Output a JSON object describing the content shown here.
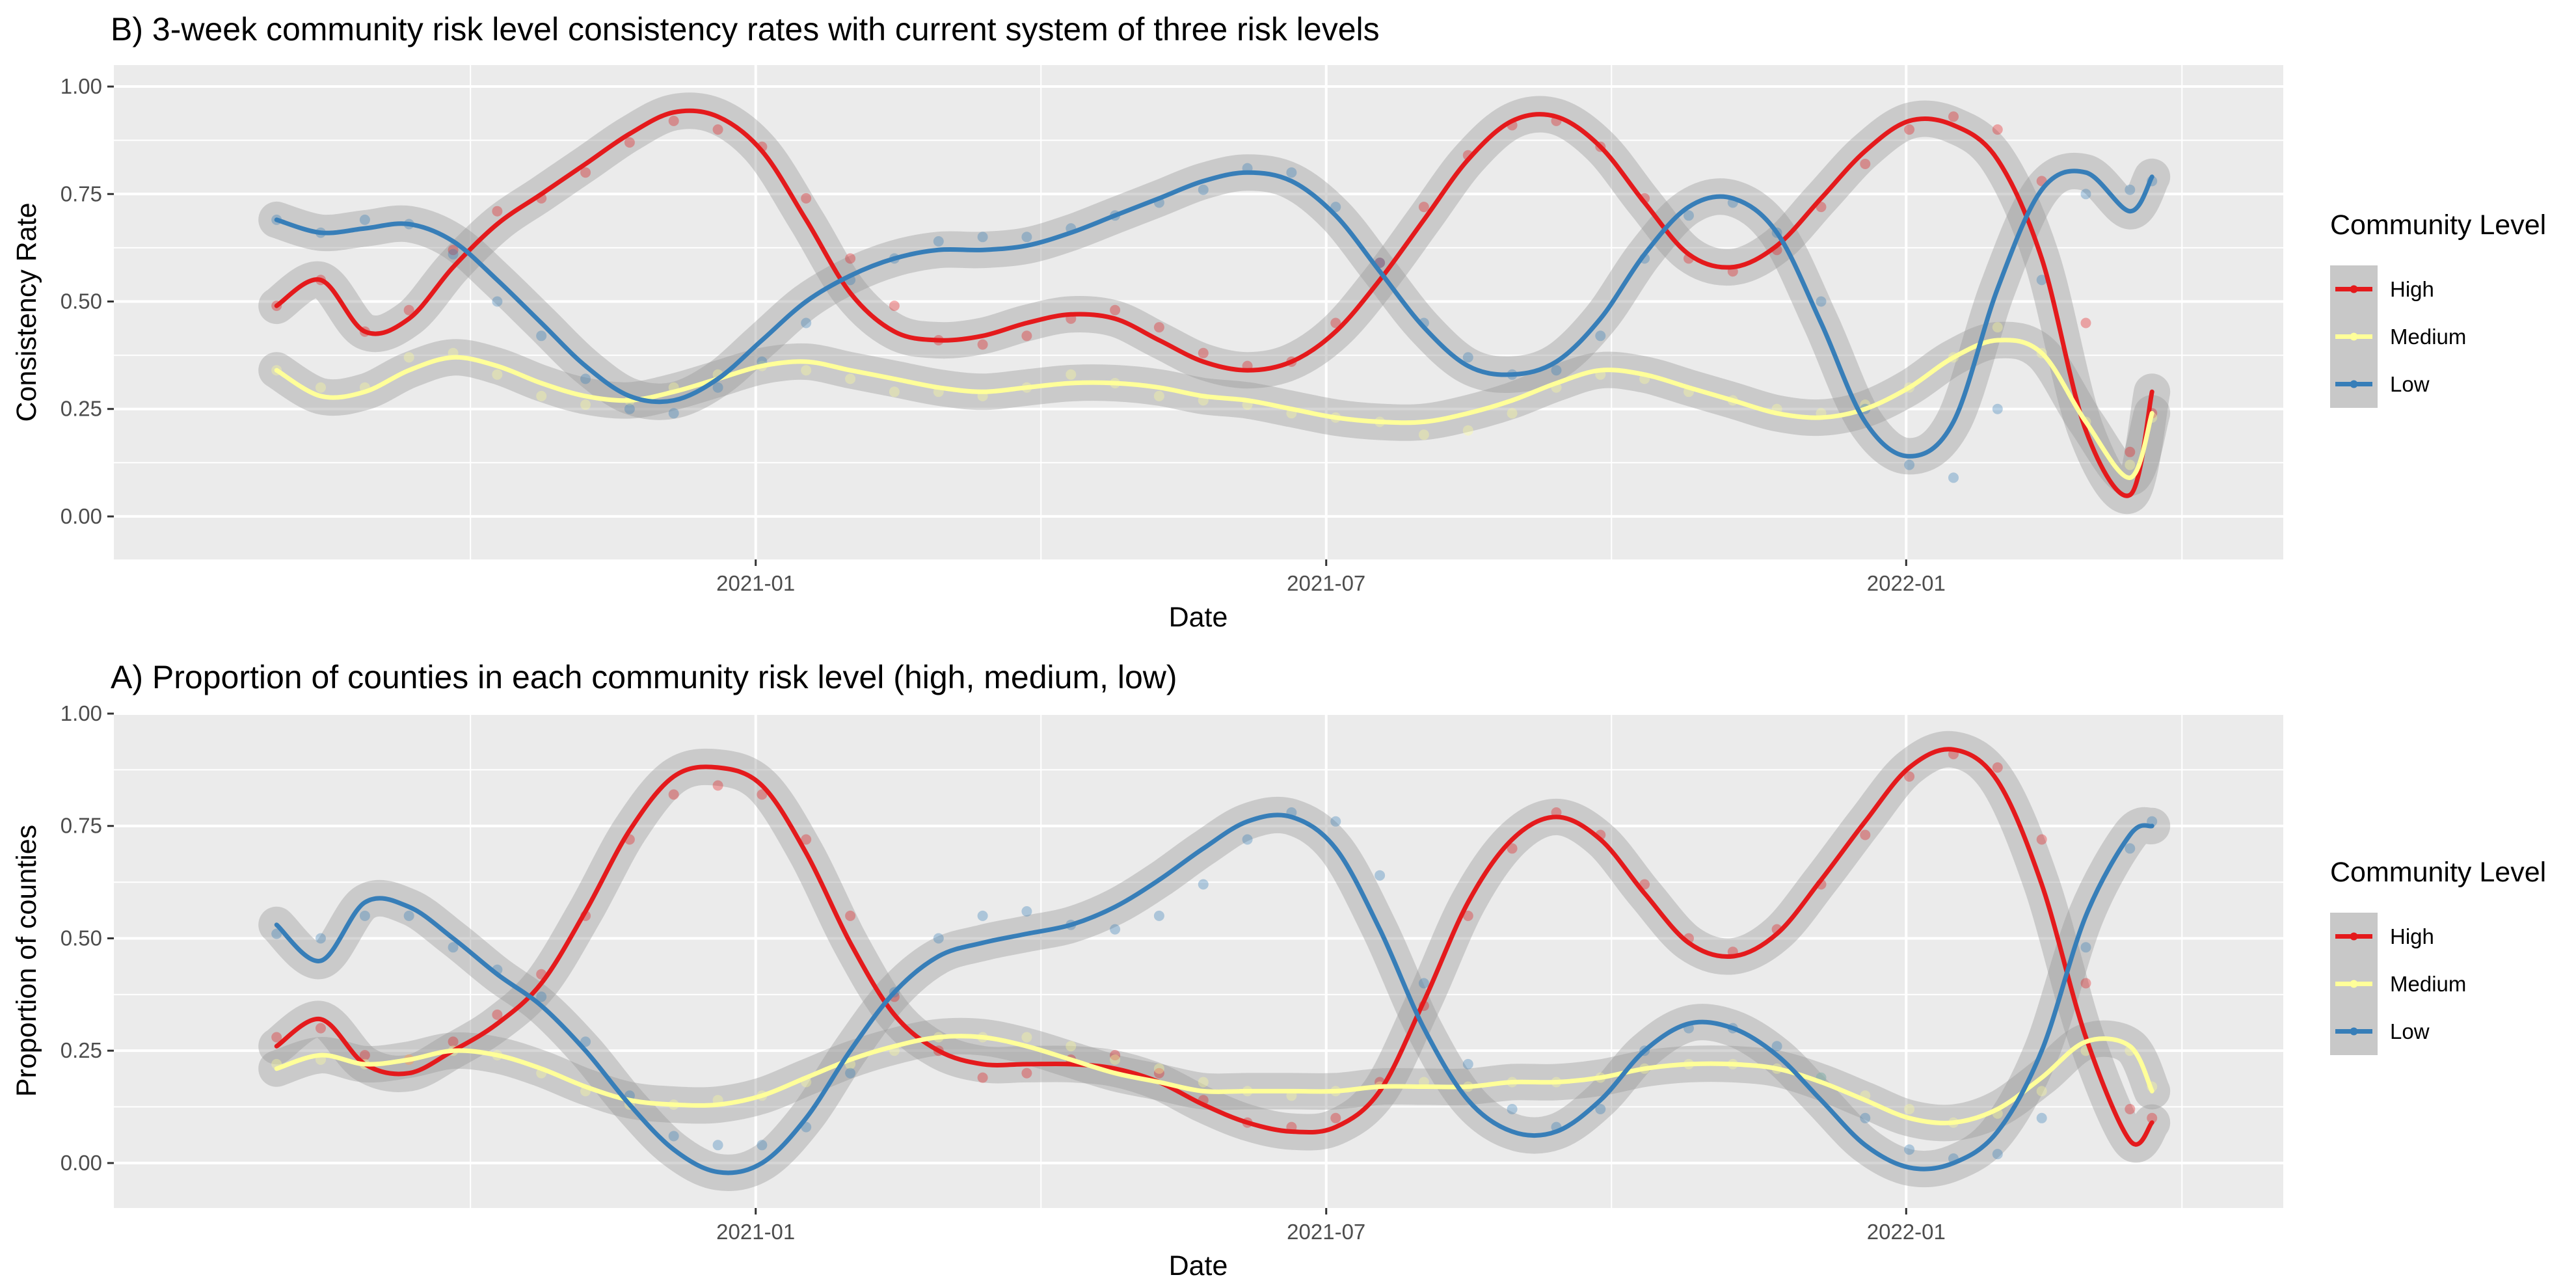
{
  "chart_data": [
    {
      "type": "scatter",
      "title": "B) 3-week community risk level consistency rates with current system of three risk levels",
      "xlabel": "Date",
      "ylabel": "Consistency Rate",
      "x_ticks": [
        "2021-01",
        "2021-07",
        "2022-01"
      ],
      "y_ticks": [
        "0.00",
        "0.25",
        "0.50",
        "0.75",
        "1.00"
      ],
      "ylim": [
        -0.1,
        1.05
      ],
      "xlim": [
        "2020-07-02",
        "2022-04-10"
      ],
      "grid": true,
      "smoothing": "loess with grey confidence band",
      "legend": {
        "title": "Community Level",
        "position": "right",
        "entries": [
          "High",
          "Medium",
          "Low"
        ]
      },
      "series": [
        {
          "name": "High",
          "color": "#E41A1C",
          "x": [
            "2020-08-02",
            "2020-08-16",
            "2020-08-30",
            "2020-09-13",
            "2020-09-27",
            "2020-10-11",
            "2020-10-25",
            "2020-11-08",
            "2020-11-22",
            "2020-12-06",
            "2020-12-20",
            "2021-01-03",
            "2021-01-17",
            "2021-01-31",
            "2021-02-14",
            "2021-02-28",
            "2021-03-14",
            "2021-03-28",
            "2021-04-11",
            "2021-04-25",
            "2021-05-09",
            "2021-05-23",
            "2021-06-06",
            "2021-06-20",
            "2021-07-04",
            "2021-07-18",
            "2021-08-01",
            "2021-08-15",
            "2021-08-29",
            "2021-09-12",
            "2021-09-26",
            "2021-10-10",
            "2021-10-24",
            "2021-11-07",
            "2021-11-21",
            "2021-12-05",
            "2021-12-19",
            "2022-01-02",
            "2022-01-16",
            "2022-01-30",
            "2022-02-13",
            "2022-02-27",
            "2022-03-13",
            "2022-03-20"
          ],
          "y": [
            0.49,
            0.55,
            0.43,
            0.48,
            0.62,
            0.71,
            0.74,
            0.8,
            0.87,
            0.92,
            0.9,
            0.86,
            0.74,
            0.6,
            0.49,
            0.41,
            0.4,
            0.42,
            0.46,
            0.48,
            0.44,
            0.38,
            0.35,
            0.36,
            0.45,
            0.59,
            0.72,
            0.84,
            0.91,
            0.92,
            0.86,
            0.74,
            0.6,
            0.57,
            0.62,
            0.72,
            0.82,
            0.9,
            0.93,
            0.9,
            0.78,
            0.45,
            0.15,
            0.24
          ],
          "smooth": [
            0.49,
            0.55,
            0.43,
            0.46,
            0.58,
            0.68,
            0.75,
            0.82,
            0.89,
            0.94,
            0.93,
            0.85,
            0.69,
            0.52,
            0.43,
            0.41,
            0.42,
            0.45,
            0.47,
            0.46,
            0.41,
            0.36,
            0.34,
            0.36,
            0.43,
            0.55,
            0.69,
            0.83,
            0.92,
            0.93,
            0.86,
            0.73,
            0.61,
            0.58,
            0.63,
            0.74,
            0.85,
            0.92,
            0.91,
            0.83,
            0.6,
            0.2,
            0.05,
            0.29
          ]
        },
        {
          "name": "Medium",
          "color": "#FFFF99",
          "x": [
            "2020-08-02",
            "2020-08-16",
            "2020-08-30",
            "2020-09-13",
            "2020-09-27",
            "2020-10-11",
            "2020-10-25",
            "2020-11-08",
            "2020-11-22",
            "2020-12-06",
            "2020-12-20",
            "2021-01-03",
            "2021-01-17",
            "2021-01-31",
            "2021-02-14",
            "2021-02-28",
            "2021-03-14",
            "2021-03-28",
            "2021-04-11",
            "2021-04-25",
            "2021-05-09",
            "2021-05-23",
            "2021-06-06",
            "2021-06-20",
            "2021-07-04",
            "2021-07-18",
            "2021-08-01",
            "2021-08-15",
            "2021-08-29",
            "2021-09-12",
            "2021-09-26",
            "2021-10-10",
            "2021-10-24",
            "2021-11-07",
            "2021-11-21",
            "2021-12-05",
            "2021-12-19",
            "2022-01-02",
            "2022-01-16",
            "2022-01-30",
            "2022-02-13",
            "2022-02-27",
            "2022-03-13",
            "2022-03-20"
          ],
          "y": [
            0.34,
            0.3,
            0.3,
            0.37,
            0.38,
            0.33,
            0.28,
            0.26,
            0.27,
            0.3,
            0.33,
            0.35,
            0.34,
            0.32,
            0.29,
            0.29,
            0.28,
            0.3,
            0.33,
            0.31,
            0.28,
            0.27,
            0.26,
            0.24,
            0.23,
            0.22,
            0.19,
            0.2,
            0.24,
            0.3,
            0.33,
            0.32,
            0.29,
            0.27,
            0.25,
            0.24,
            0.26,
            0.3,
            0.37,
            0.44,
            0.38,
            0.22,
            0.12,
            0.23
          ],
          "smooth": [
            0.34,
            0.28,
            0.29,
            0.34,
            0.37,
            0.35,
            0.31,
            0.28,
            0.27,
            0.29,
            0.32,
            0.35,
            0.36,
            0.34,
            0.32,
            0.3,
            0.29,
            0.3,
            0.31,
            0.31,
            0.3,
            0.28,
            0.27,
            0.25,
            0.23,
            0.22,
            0.22,
            0.24,
            0.27,
            0.31,
            0.34,
            0.33,
            0.3,
            0.27,
            0.24,
            0.23,
            0.25,
            0.3,
            0.37,
            0.41,
            0.38,
            0.22,
            0.09,
            0.24
          ]
        },
        {
          "name": "Low",
          "color": "#377EB8",
          "x": [
            "2020-08-02",
            "2020-08-16",
            "2020-08-30",
            "2020-09-13",
            "2020-09-27",
            "2020-10-11",
            "2020-10-25",
            "2020-11-08",
            "2020-11-22",
            "2020-12-06",
            "2020-12-20",
            "2021-01-03",
            "2021-01-17",
            "2021-01-31",
            "2021-02-14",
            "2021-02-28",
            "2021-03-14",
            "2021-03-28",
            "2021-04-11",
            "2021-04-25",
            "2021-05-09",
            "2021-05-23",
            "2021-06-06",
            "2021-06-20",
            "2021-07-04",
            "2021-07-18",
            "2021-08-01",
            "2021-08-15",
            "2021-08-29",
            "2021-09-12",
            "2021-09-26",
            "2021-10-10",
            "2021-10-24",
            "2021-11-07",
            "2021-11-21",
            "2021-12-05",
            "2021-12-19",
            "2022-01-02",
            "2022-01-16",
            "2022-01-30",
            "2022-02-13",
            "2022-02-27",
            "2022-03-13",
            "2022-03-20"
          ],
          "y": [
            0.69,
            0.66,
            0.69,
            0.68,
            0.61,
            0.5,
            0.42,
            0.32,
            0.25,
            0.24,
            0.3,
            0.36,
            0.45,
            0.55,
            0.6,
            0.64,
            0.65,
            0.65,
            0.67,
            0.7,
            0.73,
            0.76,
            0.81,
            0.8,
            0.72,
            0.59,
            0.45,
            0.37,
            0.33,
            0.34,
            0.42,
            0.6,
            0.7,
            0.73,
            0.66,
            0.5,
            0.25,
            0.12,
            0.09,
            0.25,
            0.55,
            0.75,
            0.76,
            0.78
          ],
          "smooth": [
            0.69,
            0.66,
            0.67,
            0.68,
            0.64,
            0.55,
            0.45,
            0.35,
            0.28,
            0.27,
            0.32,
            0.41,
            0.5,
            0.56,
            0.6,
            0.62,
            0.62,
            0.63,
            0.66,
            0.7,
            0.74,
            0.78,
            0.8,
            0.78,
            0.7,
            0.57,
            0.44,
            0.35,
            0.33,
            0.36,
            0.46,
            0.61,
            0.72,
            0.74,
            0.66,
            0.45,
            0.22,
            0.14,
            0.22,
            0.53,
            0.76,
            0.8,
            0.71,
            0.79
          ]
        }
      ]
    },
    {
      "type": "scatter",
      "title": "A) Proportion of counties in each community risk level (high, medium, low)",
      "xlabel": "Date",
      "ylabel": "Proportion of counties",
      "x_ticks": [
        "2021-01",
        "2021-07",
        "2022-01"
      ],
      "y_ticks": [
        "0.00",
        "0.25",
        "0.50",
        "0.75",
        "1.00"
      ],
      "ylim": [
        -0.1,
        1.0
      ],
      "xlim": [
        "2020-07-02",
        "2022-04-10"
      ],
      "grid": true,
      "smoothing": "loess with grey confidence band",
      "legend": {
        "title": "Community Level",
        "position": "right",
        "entries": [
          "High",
          "Medium",
          "Low"
        ]
      },
      "series": [
        {
          "name": "High",
          "color": "#E41A1C",
          "x": [
            "2020-08-02",
            "2020-08-16",
            "2020-08-30",
            "2020-09-13",
            "2020-09-27",
            "2020-10-11",
            "2020-10-25",
            "2020-11-08",
            "2020-11-22",
            "2020-12-06",
            "2020-12-20",
            "2021-01-03",
            "2021-01-17",
            "2021-01-31",
            "2021-02-14",
            "2021-02-28",
            "2021-03-14",
            "2021-03-28",
            "2021-04-11",
            "2021-04-25",
            "2021-05-09",
            "2021-05-23",
            "2021-06-06",
            "2021-06-20",
            "2021-07-04",
            "2021-07-18",
            "2021-08-01",
            "2021-08-15",
            "2021-08-29",
            "2021-09-12",
            "2021-09-26",
            "2021-10-10",
            "2021-10-24",
            "2021-11-07",
            "2021-11-21",
            "2021-12-05",
            "2021-12-19",
            "2022-01-02",
            "2022-01-16",
            "2022-01-30",
            "2022-02-13",
            "2022-02-27",
            "2022-03-13",
            "2022-03-20"
          ],
          "y": [
            0.28,
            0.3,
            0.24,
            0.23,
            0.27,
            0.33,
            0.42,
            0.55,
            0.72,
            0.82,
            0.84,
            0.82,
            0.72,
            0.55,
            0.37,
            0.25,
            0.19,
            0.2,
            0.23,
            0.24,
            0.2,
            0.14,
            0.09,
            0.08,
            0.1,
            0.18,
            0.35,
            0.55,
            0.7,
            0.78,
            0.73,
            0.62,
            0.5,
            0.47,
            0.52,
            0.62,
            0.73,
            0.86,
            0.91,
            0.88,
            0.72,
            0.4,
            0.12,
            0.1
          ],
          "smooth": [
            0.26,
            0.32,
            0.22,
            0.2,
            0.25,
            0.31,
            0.4,
            0.56,
            0.74,
            0.86,
            0.88,
            0.84,
            0.69,
            0.49,
            0.33,
            0.25,
            0.22,
            0.22,
            0.22,
            0.21,
            0.18,
            0.13,
            0.09,
            0.07,
            0.08,
            0.16,
            0.36,
            0.58,
            0.72,
            0.77,
            0.72,
            0.6,
            0.49,
            0.46,
            0.51,
            0.63,
            0.76,
            0.88,
            0.92,
            0.85,
            0.62,
            0.28,
            0.05,
            0.09
          ]
        },
        {
          "name": "Medium",
          "color": "#FFFF99",
          "x": [
            "2020-08-02",
            "2020-08-16",
            "2020-08-30",
            "2020-09-13",
            "2020-09-27",
            "2020-10-11",
            "2020-10-25",
            "2020-11-08",
            "2020-11-22",
            "2020-12-06",
            "2020-12-20",
            "2021-01-03",
            "2021-01-17",
            "2021-01-31",
            "2021-02-14",
            "2021-02-28",
            "2021-03-14",
            "2021-03-28",
            "2021-04-11",
            "2021-04-25",
            "2021-05-09",
            "2021-05-23",
            "2021-06-06",
            "2021-06-20",
            "2021-07-04",
            "2021-07-18",
            "2021-08-01",
            "2021-08-15",
            "2021-08-29",
            "2021-09-12",
            "2021-09-26",
            "2021-10-10",
            "2021-10-24",
            "2021-11-07",
            "2021-11-21",
            "2021-12-05",
            "2021-12-19",
            "2022-01-02",
            "2022-01-16",
            "2022-01-30",
            "2022-02-13",
            "2022-02-27",
            "2022-03-13",
            "2022-03-20"
          ],
          "y": [
            0.22,
            0.23,
            0.22,
            0.23,
            0.25,
            0.24,
            0.2,
            0.16,
            0.13,
            0.13,
            0.14,
            0.15,
            0.18,
            0.22,
            0.25,
            0.28,
            0.28,
            0.28,
            0.26,
            0.23,
            0.21,
            0.18,
            0.16,
            0.15,
            0.16,
            0.17,
            0.18,
            0.17,
            0.18,
            0.18,
            0.19,
            0.21,
            0.22,
            0.22,
            0.21,
            0.19,
            0.15,
            0.12,
            0.09,
            0.11,
            0.16,
            0.25,
            0.25,
            0.17
          ],
          "smooth": [
            0.21,
            0.24,
            0.22,
            0.23,
            0.25,
            0.24,
            0.21,
            0.17,
            0.14,
            0.13,
            0.13,
            0.15,
            0.19,
            0.23,
            0.26,
            0.28,
            0.28,
            0.26,
            0.23,
            0.2,
            0.18,
            0.16,
            0.16,
            0.16,
            0.16,
            0.17,
            0.17,
            0.17,
            0.18,
            0.18,
            0.19,
            0.21,
            0.22,
            0.22,
            0.21,
            0.18,
            0.14,
            0.1,
            0.09,
            0.12,
            0.19,
            0.27,
            0.26,
            0.16
          ]
        },
        {
          "name": "Low",
          "color": "#377EB8",
          "x": [
            "2020-08-02",
            "2020-08-16",
            "2020-08-30",
            "2020-09-13",
            "2020-09-27",
            "2020-10-11",
            "2020-10-25",
            "2020-11-08",
            "2020-11-22",
            "2020-12-06",
            "2020-12-20",
            "2021-01-03",
            "2021-01-17",
            "2021-01-31",
            "2021-02-14",
            "2021-02-28",
            "2021-03-14",
            "2021-03-28",
            "2021-04-11",
            "2021-04-25",
            "2021-05-09",
            "2021-05-23",
            "2021-06-06",
            "2021-06-20",
            "2021-07-04",
            "2021-07-18",
            "2021-08-01",
            "2021-08-15",
            "2021-08-29",
            "2021-09-12",
            "2021-09-26",
            "2021-10-10",
            "2021-10-24",
            "2021-11-07",
            "2021-11-21",
            "2021-12-05",
            "2021-12-19",
            "2022-01-02",
            "2022-01-16",
            "2022-01-30",
            "2022-02-13",
            "2022-02-27",
            "2022-03-13",
            "2022-03-20"
          ],
          "y": [
            0.51,
            0.5,
            0.55,
            0.55,
            0.48,
            0.43,
            0.37,
            0.27,
            0.15,
            0.06,
            0.04,
            0.04,
            0.08,
            0.2,
            0.38,
            0.5,
            0.55,
            0.56,
            0.53,
            0.52,
            0.55,
            0.62,
            0.72,
            0.78,
            0.76,
            0.64,
            0.4,
            0.22,
            0.12,
            0.08,
            0.12,
            0.25,
            0.3,
            0.3,
            0.26,
            0.19,
            0.1,
            0.03,
            0.01,
            0.02,
            0.1,
            0.48,
            0.7,
            0.76
          ],
          "smooth": [
            0.53,
            0.45,
            0.58,
            0.57,
            0.5,
            0.42,
            0.35,
            0.25,
            0.13,
            0.03,
            -0.02,
            0.0,
            0.1,
            0.25,
            0.38,
            0.46,
            0.49,
            0.51,
            0.53,
            0.57,
            0.63,
            0.7,
            0.76,
            0.77,
            0.7,
            0.52,
            0.3,
            0.14,
            0.07,
            0.07,
            0.14,
            0.25,
            0.31,
            0.3,
            0.24,
            0.14,
            0.04,
            -0.01,
            0.0,
            0.07,
            0.25,
            0.55,
            0.73,
            0.75
          ]
        }
      ]
    }
  ]
}
